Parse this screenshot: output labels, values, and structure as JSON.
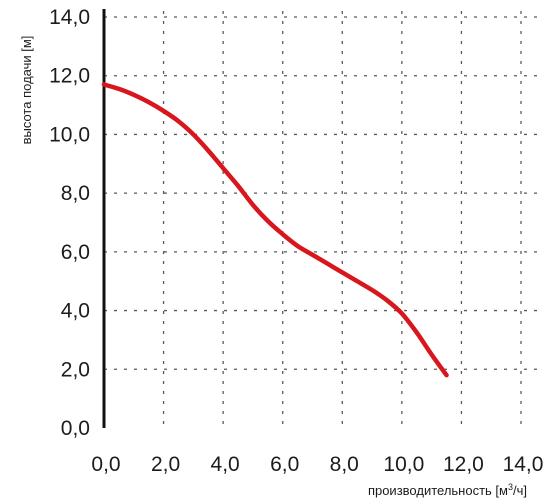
{
  "chart_data": {
    "type": "line",
    "title": "",
    "xlabel": "производительность [м",
    "xlabel_unit_sup": "3",
    "xlabel_unit_rest": "/ч]",
    "ylabel": "высота подачи [м]",
    "xlim": [
      0,
      14
    ],
    "ylim": [
      0,
      14
    ],
    "xticks": [
      "0,0",
      "2,0",
      "4,0",
      "6,0",
      "8,0",
      "10,0",
      "12,0",
      "14,0"
    ],
    "yticks": [
      "0,0",
      "2,0",
      "4,0",
      "6,0",
      "8,0",
      "10,0",
      "12,0",
      "14,0"
    ],
    "grid": true,
    "legend": "none",
    "series": [
      {
        "color": "#d7161e",
        "x": [
          0.0,
          0.5,
          1.0,
          1.5,
          2.0,
          2.5,
          3.0,
          3.5,
          4.0,
          4.5,
          5.0,
          5.5,
          6.0,
          6.5,
          7.0,
          7.5,
          8.0,
          8.5,
          9.0,
          9.5,
          10.0,
          10.5,
          11.0,
          11.5
        ],
        "y": [
          11.7,
          11.55,
          11.35,
          11.1,
          10.8,
          10.45,
          10.0,
          9.45,
          8.85,
          8.25,
          7.6,
          7.05,
          6.6,
          6.2,
          5.9,
          5.6,
          5.3,
          5.0,
          4.7,
          4.35,
          3.9,
          3.25,
          2.5,
          1.8
        ]
      }
    ]
  }
}
